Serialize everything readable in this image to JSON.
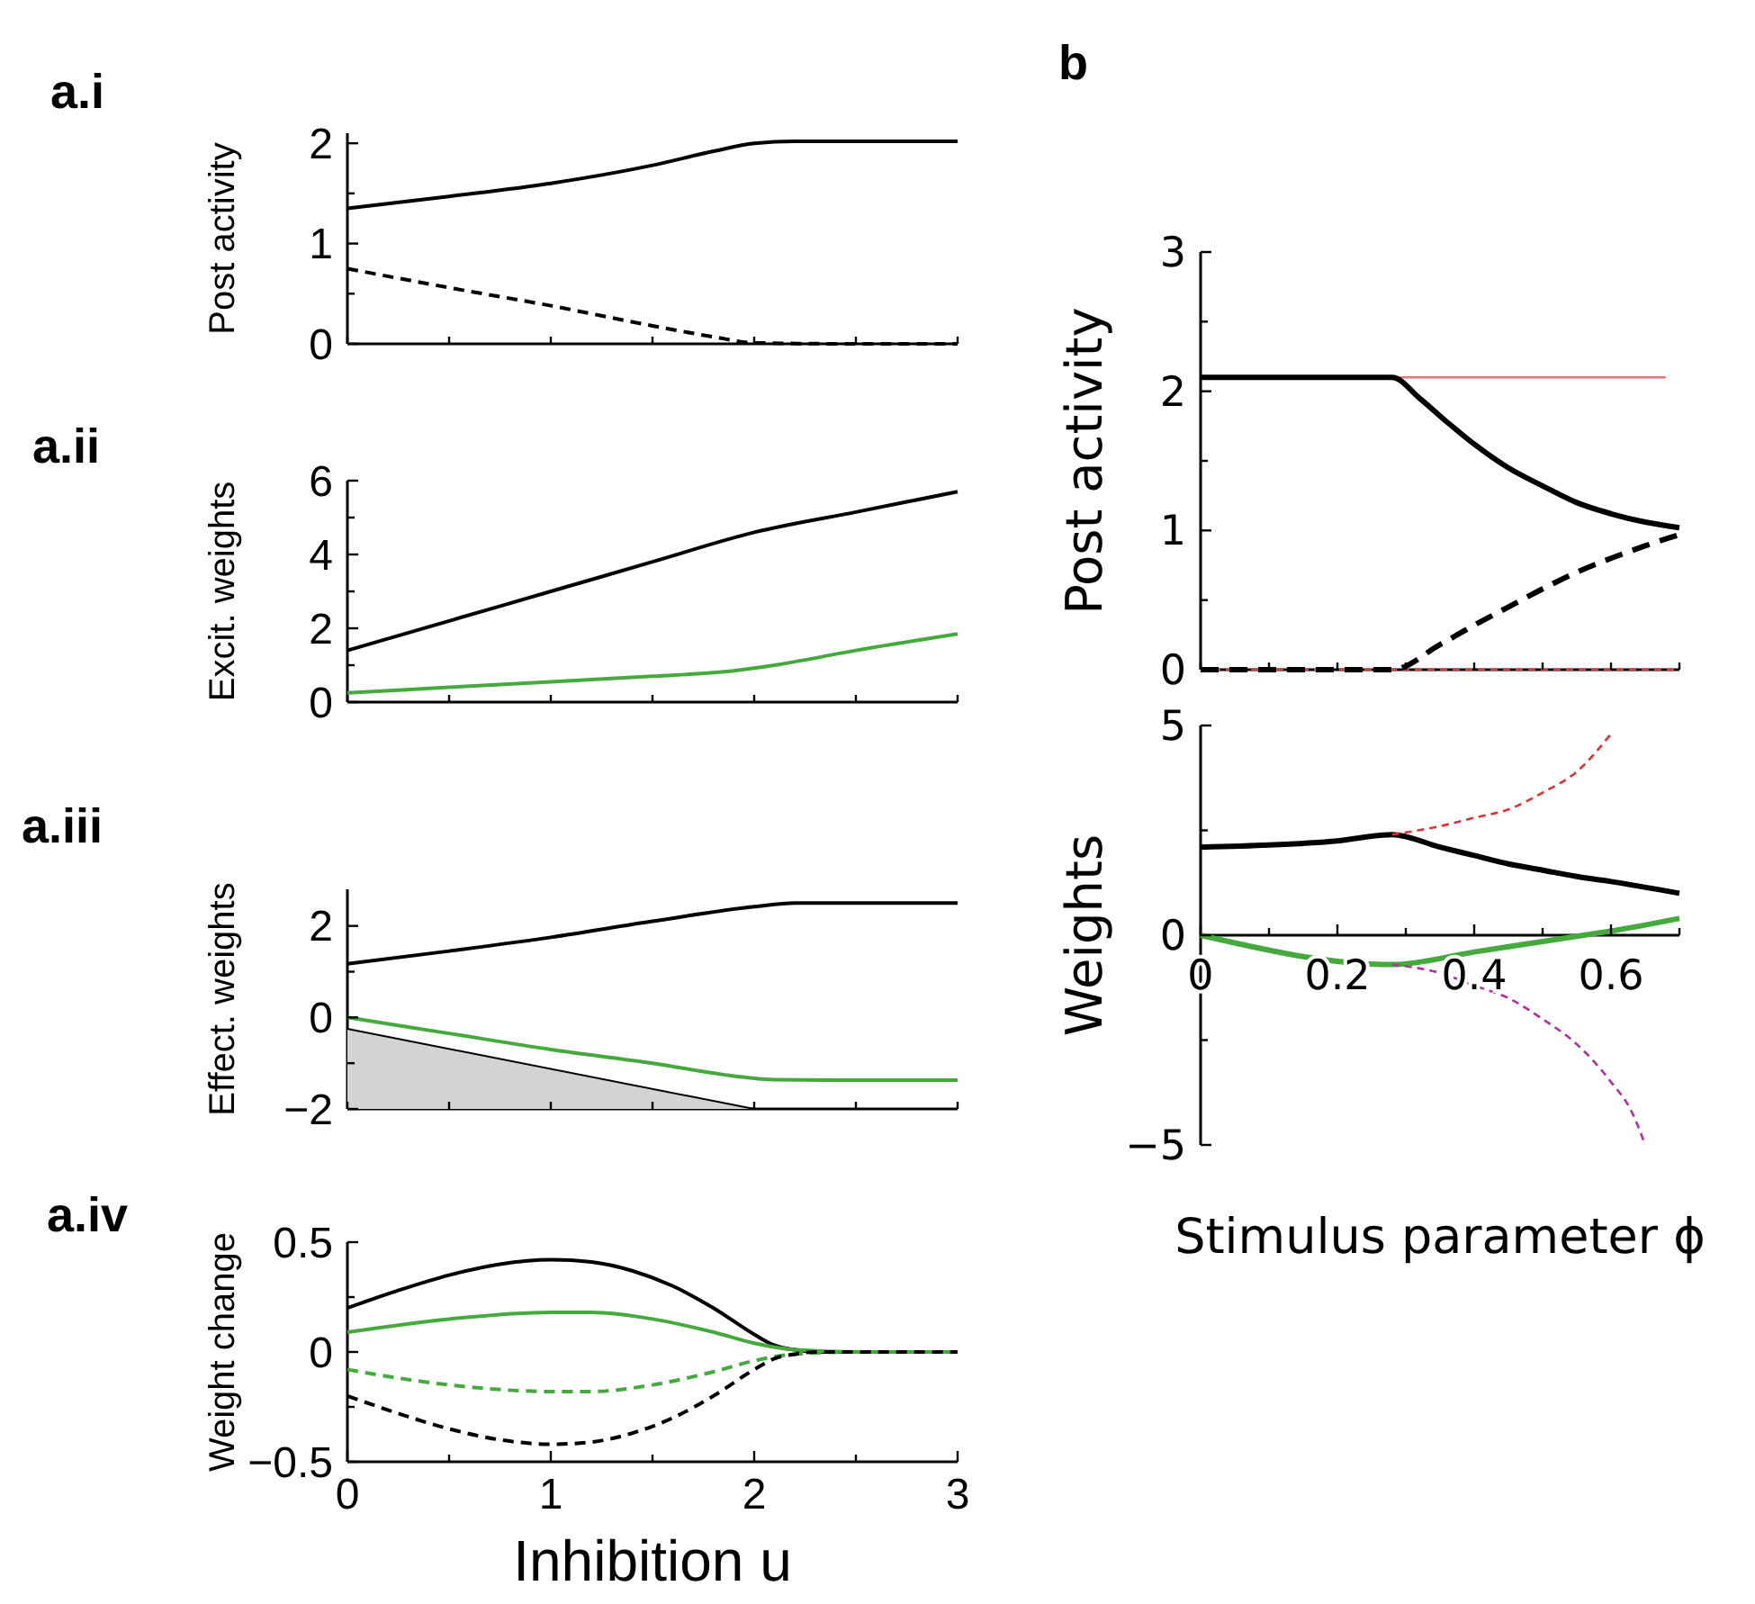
{
  "chart_data": [
    {
      "type": "line",
      "title": "a.i",
      "ylabel": "Post activity",
      "xlim": [
        0,
        3
      ],
      "ylim": [
        0,
        2.1
      ],
      "xticks": [
        {
          "value": 0,
          "label": null
        },
        {
          "value": 0.5,
          "label": null
        },
        {
          "value": 1,
          "label": null
        },
        {
          "value": 1.5,
          "label": null
        },
        {
          "value": 2,
          "label": null
        },
        {
          "value": 2.5,
          "label": null
        },
        {
          "value": 3,
          "label": null
        }
      ],
      "yticks": [
        0,
        {
          "value": 0.5,
          "label": null
        },
        1,
        {
          "value": 1.5,
          "label": null
        },
        2
      ],
      "tick_labels": "y",
      "grid": false,
      "marker": "none",
      "series": [
        {
          "color": "#000000",
          "line_style": "solid",
          "x": [
            0,
            0.5,
            1,
            1.5,
            1.8,
            2,
            2.2,
            2.5,
            3
          ],
          "values": [
            1.35,
            1.47,
            1.6,
            1.78,
            1.92,
            2.0,
            2.02,
            2.02,
            2.02
          ]
        },
        {
          "color": "#000000",
          "line_style": "dashed",
          "x": [
            0,
            0.5,
            1,
            1.5,
            1.8,
            2,
            2.5,
            3
          ],
          "values": [
            0.75,
            0.56,
            0.38,
            0.18,
            0.07,
            0.01,
            0,
            0
          ]
        }
      ]
    },
    {
      "type": "line",
      "title": "a.ii",
      "ylabel": "Excit. weights",
      "xlim": [
        0,
        3
      ],
      "ylim": [
        0,
        6
      ],
      "xticks": [
        {
          "value": 0,
          "label": null
        },
        {
          "value": 0.5,
          "label": null
        },
        {
          "value": 1,
          "label": null
        },
        {
          "value": 1.5,
          "label": null
        },
        {
          "value": 2,
          "label": null
        },
        {
          "value": 2.5,
          "label": null
        },
        {
          "value": 3,
          "label": null
        }
      ],
      "yticks": [
        0,
        {
          "value": 1,
          "label": null
        },
        2,
        {
          "value": 3,
          "label": null
        },
        4,
        {
          "value": 5,
          "label": null
        },
        6
      ],
      "tick_labels": "y",
      "grid": false,
      "marker": "none",
      "series": [
        {
          "color": "#000000",
          "line_style": "solid",
          "x": [
            0,
            0.5,
            1,
            1.5,
            2,
            2.5,
            3
          ],
          "values": [
            1.4,
            2.2,
            3.0,
            3.8,
            4.6,
            5.15,
            5.7
          ]
        },
        {
          "color": "#44aa3c",
          "line_style": "solid",
          "x": [
            0,
            0.5,
            1,
            1.5,
            1.9,
            2.1,
            2.5,
            3
          ],
          "values": [
            0.25,
            0.4,
            0.55,
            0.7,
            0.85,
            1.0,
            1.4,
            1.85
          ]
        }
      ]
    },
    {
      "type": "line",
      "title": "a.iii",
      "ylabel": "Effect. weights",
      "xlim": [
        0,
        3
      ],
      "ylim": [
        -2,
        2.8
      ],
      "xticks": [
        {
          "value": 0,
          "label": null
        },
        {
          "value": 0.5,
          "label": null
        },
        {
          "value": 1,
          "label": null
        },
        {
          "value": 1.5,
          "label": null
        },
        {
          "value": 2,
          "label": null
        },
        {
          "value": 2.5,
          "label": null
        },
        {
          "value": 3,
          "label": null
        }
      ],
      "yticks": [
        -2,
        {
          "value": -1,
          "label": null
        },
        0,
        {
          "value": 1,
          "label": null
        },
        2
      ],
      "tick_labels": "y",
      "grid": false,
      "marker": "none",
      "series": [
        {
          "type": "area",
          "color": "#d3d3d3",
          "line_style": "solid",
          "x": [
            0,
            2
          ],
          "values": [
            -0.25,
            -2
          ]
        },
        {
          "color": "#000000",
          "line_style": "solid",
          "x": [
            0,
            0.5,
            1,
            1.5,
            2,
            2.2,
            2.5,
            3
          ],
          "values": [
            1.17,
            1.45,
            1.75,
            2.1,
            2.42,
            2.5,
            2.5,
            2.5
          ]
        },
        {
          "color": "#44aa3c",
          "line_style": "solid",
          "x": [
            0,
            0.5,
            1,
            1.5,
            1.9,
            2.1,
            2.5,
            3
          ],
          "values": [
            0,
            -0.35,
            -0.7,
            -1.0,
            -1.28,
            -1.36,
            -1.37,
            -1.37
          ]
        }
      ]
    },
    {
      "type": "line",
      "title": "a.iv",
      "xlabel": "Inhibition u",
      "ylabel": "Weight change",
      "xlim": [
        0,
        3
      ],
      "ylim": [
        -0.5,
        0.5
      ],
      "xticks": [
        0,
        {
          "value": 0.5,
          "label": null
        },
        1,
        {
          "value": 1.5,
          "label": null
        },
        2,
        {
          "value": 2.5,
          "label": null
        },
        3
      ],
      "yticks": [
        -0.5,
        {
          "value": -0.25,
          "label": null
        },
        0,
        {
          "value": 0.25,
          "label": null
        },
        0.5
      ],
      "grid": false,
      "marker": "none",
      "series": [
        {
          "color": "#000000",
          "line_style": "solid",
          "x": [
            0,
            0.25,
            0.5,
            0.75,
            1,
            1.2,
            1.4,
            1.6,
            1.8,
            2,
            2.1,
            2.2,
            2.3,
            2.5,
            3
          ],
          "values": [
            0.2,
            0.28,
            0.35,
            0.4,
            0.42,
            0.41,
            0.37,
            0.3,
            0.2,
            0.08,
            0.03,
            0.01,
            0,
            0,
            0
          ]
        },
        {
          "color": "#44aa3c",
          "line_style": "solid",
          "x": [
            0,
            0.5,
            1,
            1.2,
            1.5,
            1.8,
            2,
            2.2,
            2.5,
            3
          ],
          "values": [
            0.09,
            0.15,
            0.18,
            0.18,
            0.15,
            0.09,
            0.04,
            0.01,
            0,
            0
          ]
        },
        {
          "color": "#44aa3c",
          "line_style": "dashed",
          "x": [
            0,
            0.5,
            1,
            1.2,
            1.5,
            1.8,
            2,
            2.2,
            2.5,
            3
          ],
          "values": [
            -0.08,
            -0.15,
            -0.18,
            -0.18,
            -0.15,
            -0.09,
            -0.04,
            -0.01,
            0,
            0
          ]
        },
        {
          "color": "#000000",
          "line_style": "dashed",
          "x": [
            0,
            0.25,
            0.5,
            0.75,
            1,
            1.2,
            1.4,
            1.6,
            1.8,
            2,
            2.1,
            2.2,
            2.3,
            2.5,
            3
          ],
          "values": [
            -0.2,
            -0.28,
            -0.35,
            -0.4,
            -0.42,
            -0.41,
            -0.37,
            -0.3,
            -0.2,
            -0.08,
            -0.03,
            -0.01,
            0,
            0,
            0
          ]
        }
      ]
    },
    {
      "type": "line",
      "title": "b",
      "ylabel": "Post activity",
      "xlim": [
        0,
        0.7
      ],
      "ylim": [
        0,
        3
      ],
      "xticks": [
        {
          "value": 0,
          "label": null
        },
        {
          "value": 0.1,
          "label": null
        },
        {
          "value": 0.2,
          "label": null
        },
        {
          "value": 0.3,
          "label": null
        },
        {
          "value": 0.4,
          "label": null
        },
        {
          "value": 0.5,
          "label": null
        },
        {
          "value": 0.6,
          "label": null
        },
        {
          "value": 0.7,
          "label": null
        }
      ],
      "yticks": [
        0,
        {
          "value": 0.5,
          "label": null
        },
        1,
        {
          "value": 1.5,
          "label": null
        },
        2,
        {
          "value": 2.5,
          "label": null
        },
        3
      ],
      "tick_labels": "y",
      "grid": false,
      "marker": "none",
      "series": [
        {
          "color": "#e07878",
          "line_style": "solid",
          "x": [
            0,
            0.68
          ],
          "values": [
            2.1,
            2.1
          ]
        },
        {
          "color": "#d04040",
          "line_style": "dashed",
          "x": [
            0,
            0.7
          ],
          "values": [
            0,
            0
          ]
        },
        {
          "color": "#000000",
          "line_style": "solid",
          "x": [
            0,
            0.28,
            0.32,
            0.36,
            0.4,
            0.45,
            0.5,
            0.55,
            0.6,
            0.65,
            0.7
          ],
          "values": [
            2.1,
            2.1,
            1.95,
            1.78,
            1.62,
            1.45,
            1.32,
            1.2,
            1.12,
            1.06,
            1.02
          ]
        },
        {
          "color": "#000000",
          "line_style": "dashed",
          "x": [
            0,
            0.28,
            0.35,
            0.4,
            0.45,
            0.5,
            0.55,
            0.6,
            0.65,
            0.7
          ],
          "values": [
            0,
            0,
            0.18,
            0.32,
            0.45,
            0.58,
            0.7,
            0.8,
            0.89,
            0.97
          ]
        }
      ]
    },
    {
      "type": "line",
      "xlabel": "Stimulus parameter ϕ",
      "ylabel": "Weights",
      "xlim": [
        0,
        0.7
      ],
      "ylim": [
        -5,
        5
      ],
      "xticks": [
        0,
        {
          "value": 0.1,
          "label": null
        },
        0.2,
        {
          "value": 0.3,
          "label": null
        },
        0.4,
        {
          "value": 0.5,
          "label": null
        },
        0.6,
        {
          "value": 0.7,
          "label": null
        }
      ],
      "yticks": [
        -5,
        {
          "value": -2.5,
          "label": null
        },
        0,
        {
          "value": 2.5,
          "label": null
        },
        5
      ],
      "grid": false,
      "marker": "none",
      "series": [
        {
          "color": "#000000",
          "line_style": "solid",
          "x": [
            0,
            0.1,
            0.2,
            0.28,
            0.35,
            0.4,
            0.45,
            0.5,
            0.55,
            0.6,
            0.7
          ],
          "values": [
            2.1,
            2.15,
            2.25,
            2.4,
            2.1,
            1.9,
            1.7,
            1.55,
            1.4,
            1.28,
            1.0
          ]
        },
        {
          "color": "#44aa3c",
          "line_style": "solid",
          "x": [
            0,
            0.28,
            0.4,
            0.5,
            0.56,
            0.6,
            0.7
          ],
          "values": [
            0,
            -0.7,
            -0.4,
            -0.15,
            0,
            0.1,
            0.4
          ]
        },
        {
          "color": "#e03030",
          "line_style": "dashed",
          "x": [
            0.28,
            0.35,
            0.4,
            0.45,
            0.5,
            0.55,
            0.6
          ],
          "values": [
            2.4,
            2.6,
            2.8,
            3.0,
            3.4,
            3.9,
            4.8
          ]
        },
        {
          "color": "#b030a0",
          "line_style": "dashed",
          "x": [
            0.28,
            0.35,
            0.4,
            0.45,
            0.5,
            0.55,
            0.6,
            0.63,
            0.65
          ],
          "values": [
            -0.7,
            -0.9,
            -1.2,
            -1.5,
            -2.0,
            -2.6,
            -3.5,
            -4.2,
            -5
          ]
        }
      ]
    }
  ]
}
